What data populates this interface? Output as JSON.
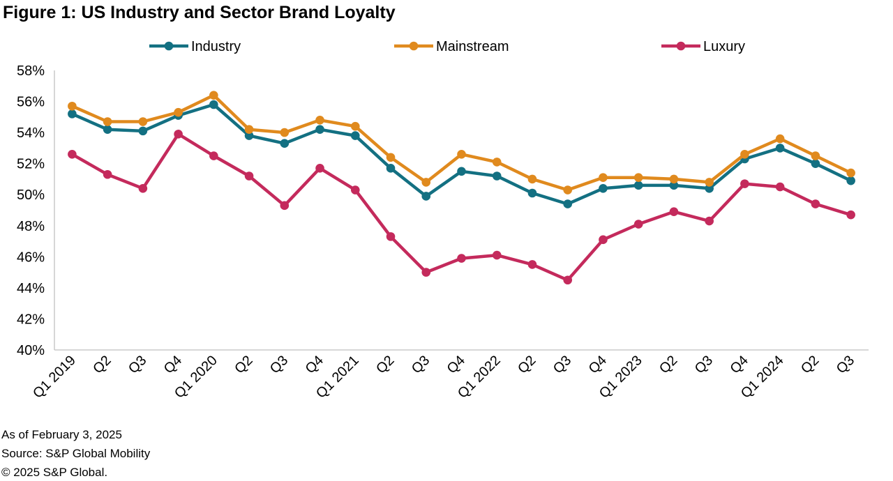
{
  "title": "Figure 1: US Industry and Sector Brand Loyalty",
  "footer": {
    "as_of": "As of February 3, 2025",
    "source": "Source: S&P Global Mobility",
    "copyright": "© 2025 S&P Global."
  },
  "chart_data": {
    "type": "line",
    "title": "Figure 1: US Industry and Sector Brand Loyalty",
    "xlabel": "",
    "ylabel": "",
    "ylim": [
      40,
      58
    ],
    "yticks": [
      "40%",
      "42%",
      "44%",
      "46%",
      "48%",
      "50%",
      "52%",
      "54%",
      "56%",
      "58%"
    ],
    "grid": false,
    "legend_position": "top",
    "categories": [
      "Q1 2019",
      "Q2",
      "Q3",
      "Q4",
      "Q1 2020",
      "Q2",
      "Q3",
      "Q4",
      "Q1 2021",
      "Q2",
      "Q3",
      "Q4",
      "Q1 2022",
      "Q2",
      "Q3",
      "Q4",
      "Q1 2023",
      "Q2",
      "Q3",
      "Q4",
      "Q1 2024",
      "Q2",
      "Q3"
    ],
    "series": [
      {
        "name": "Industry",
        "color": "#137082",
        "values": [
          55.2,
          54.2,
          54.1,
          55.1,
          55.8,
          53.8,
          53.3,
          54.2,
          53.8,
          51.7,
          49.9,
          51.5,
          51.2,
          50.1,
          49.4,
          50.4,
          50.6,
          50.6,
          50.4,
          52.3,
          53.0,
          52.0,
          50.9
        ]
      },
      {
        "name": "Mainstream",
        "color": "#E08A1E",
        "values": [
          55.7,
          54.7,
          54.7,
          55.3,
          56.4,
          54.2,
          54.0,
          54.8,
          54.4,
          52.4,
          50.8,
          52.6,
          52.1,
          51.0,
          50.3,
          51.1,
          51.1,
          51.0,
          50.8,
          52.6,
          53.6,
          52.5,
          51.4
        ]
      },
      {
        "name": "Luxury",
        "color": "#C42A5C",
        "values": [
          52.6,
          51.3,
          50.4,
          53.9,
          52.5,
          51.2,
          49.3,
          51.7,
          50.3,
          47.3,
          45.0,
          45.9,
          46.1,
          45.5,
          44.5,
          47.1,
          48.1,
          48.9,
          48.3,
          50.7,
          50.5,
          49.4,
          48.7
        ]
      }
    ]
  }
}
